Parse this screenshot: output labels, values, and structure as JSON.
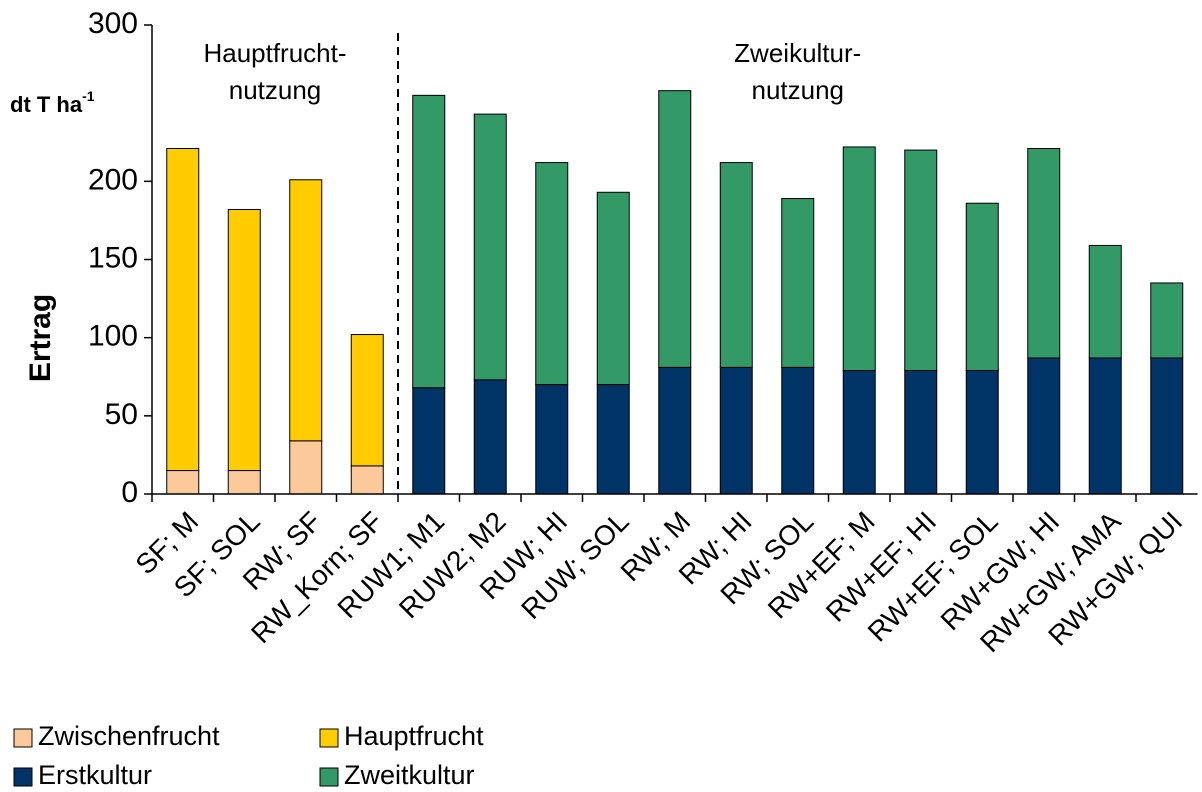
{
  "chart_data": {
    "type": "bar",
    "stacked": true,
    "y_label": "Ertrag",
    "unit": {
      "text": "dt T ha",
      "sup": "-1"
    },
    "annotations": [
      {
        "lines": [
          "Hauptfrucht-",
          "nutzung"
        ],
        "from": 0,
        "to": 3
      },
      {
        "lines": [
          "Zweikultur-",
          "nutzung"
        ],
        "from": 4,
        "to": 16
      }
    ],
    "divider_after": 3,
    "categories": [
      "SF; M",
      "SF; SOL",
      "RW; SF",
      "RW_Korn; SF",
      "RUW1; M1",
      "RUW2; M2",
      "RUW; HI",
      "RUW; SOL",
      "RW; M",
      "RW; HI",
      "RW; SOL",
      "RW+EF; M",
      "RW+EF; HI",
      "RW+EF; SOL",
      "RW+GW; HI",
      "RW+GW; AMA",
      "RW+GW; QUI"
    ],
    "series": [
      {
        "name": "Zwischenfrucht",
        "color": "#fcc99b",
        "values": [
          15,
          15,
          34,
          18,
          null,
          null,
          null,
          null,
          null,
          null,
          null,
          null,
          null,
          null,
          null,
          null,
          null
        ]
      },
      {
        "name": "Hauptfrucht",
        "color": "#ffcc00",
        "values": [
          206,
          167,
          167,
          84,
          null,
          null,
          null,
          null,
          null,
          null,
          null,
          null,
          null,
          null,
          null,
          null,
          null
        ]
      },
      {
        "name": "Erstkultur",
        "color": "#003366",
        "values": [
          null,
          null,
          null,
          null,
          68,
          73,
          70,
          70,
          81,
          81,
          81,
          79,
          79,
          79,
          87,
          87,
          87
        ]
      },
      {
        "name": "Zweitkultur",
        "color": "#339966",
        "values": [
          null,
          null,
          null,
          null,
          187,
          170,
          142,
          123,
          177,
          131,
          108,
          143,
          141,
          107,
          134,
          72,
          48
        ]
      }
    ],
    "ylim": [
      0,
      300
    ],
    "yticks": [
      0,
      50,
      100,
      150,
      200,
      300
    ],
    "grid": false
  }
}
